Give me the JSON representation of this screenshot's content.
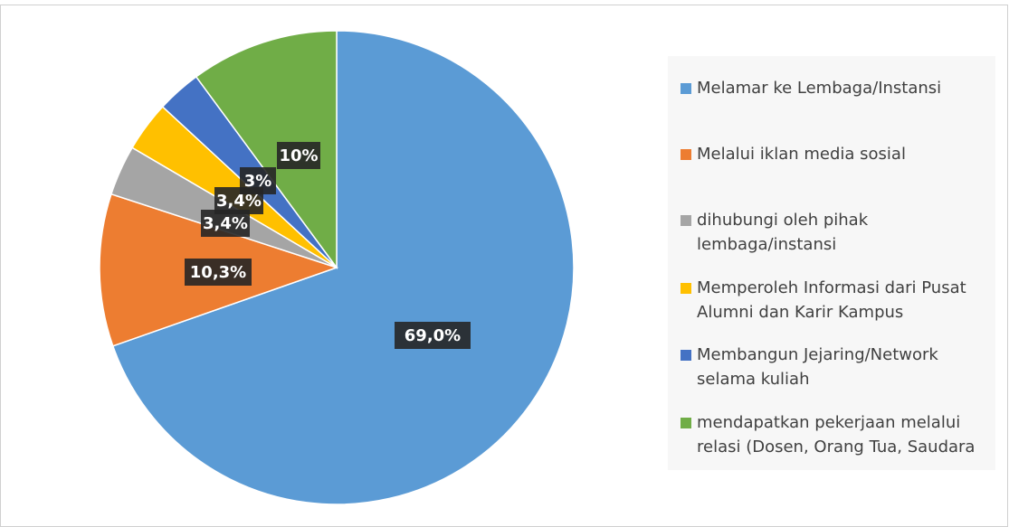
{
  "chart_data": {
    "type": "pie",
    "categories": [
      "Melamar ke Lembaga/Instansi",
      "Melalui iklan media sosial",
      "dihubungi oleh pihak lembaga/instansi",
      "Memperoleh Informasi dari Pusat Alumni dan Karir Kampus",
      "Membangun Jejaring/Network selama kuliah",
      "mendapatkan pekerjaan melalui relasi (Dosen, Orang Tua, Saudara"
    ],
    "values": [
      69.0,
      10.3,
      3.4,
      3.4,
      3,
      10
    ],
    "value_labels": [
      "69,0%",
      "10,3%",
      "3,4%",
      "3,4%",
      "3%",
      "10%"
    ],
    "colors": [
      "#5b9bd5",
      "#ed7d31",
      "#a5a5a5",
      "#ffc000",
      "#4472c4",
      "#70ad47"
    ],
    "legend": "right"
  }
}
